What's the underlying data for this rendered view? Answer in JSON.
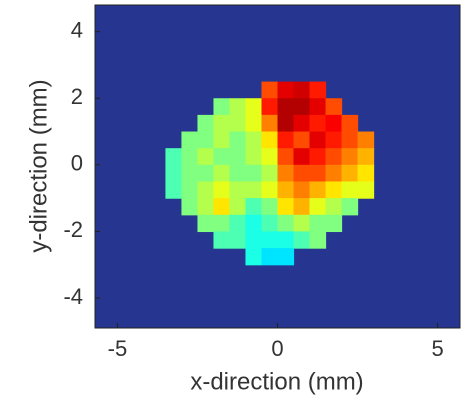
{
  "chart_data": {
    "type": "heatmap",
    "xlabel": "x-direction (mm)",
    "ylabel": "y-direction (mm)",
    "xlim": [
      -5.7,
      5.7
    ],
    "ylim": [
      -4.9,
      4.8
    ],
    "xticks": [
      -5,
      0,
      5
    ],
    "yticks": [
      4,
      2,
      0,
      -2,
      -4
    ],
    "colormap": "jet",
    "zlim": [
      0,
      1
    ],
    "background": "#26358f",
    "grid": false,
    "x": [
      -3.25,
      -2.75,
      -2.25,
      -1.75,
      -1.25,
      -0.75,
      -0.25,
      0.25,
      0.75,
      1.25,
      1.75,
      2.25,
      2.75
    ],
    "y": [
      2.25,
      1.75,
      1.25,
      0.75,
      0.25,
      -0.25,
      -0.75,
      -1.25,
      -1.75,
      -2.25,
      -2.75
    ],
    "z": [
      [
        null,
        null,
        null,
        null,
        null,
        null,
        0.8,
        0.9,
        0.92,
        0.85,
        null,
        null,
        null
      ],
      [
        null,
        null,
        null,
        0.5,
        0.55,
        0.6,
        0.85,
        0.95,
        0.95,
        0.9,
        0.8,
        null,
        null
      ],
      [
        null,
        null,
        0.5,
        0.55,
        0.55,
        0.6,
        0.75,
        0.95,
        0.9,
        0.85,
        0.88,
        0.8,
        null
      ],
      [
        null,
        0.5,
        0.5,
        0.55,
        0.5,
        0.55,
        0.65,
        0.85,
        0.8,
        0.9,
        0.85,
        0.8,
        0.75
      ],
      [
        0.45,
        0.5,
        0.55,
        0.5,
        0.5,
        0.55,
        0.6,
        0.8,
        0.9,
        0.85,
        0.8,
        0.75,
        0.7
      ],
      [
        0.45,
        0.5,
        0.5,
        0.55,
        0.5,
        0.5,
        0.55,
        0.75,
        0.8,
        0.8,
        0.75,
        0.7,
        0.65
      ],
      [
        0.45,
        0.5,
        0.55,
        0.6,
        0.55,
        0.55,
        0.6,
        0.7,
        0.75,
        0.7,
        0.65,
        0.6,
        0.6
      ],
      [
        null,
        0.5,
        0.55,
        0.65,
        0.55,
        0.45,
        0.5,
        0.65,
        0.7,
        0.6,
        0.55,
        0.5,
        null
      ],
      [
        null,
        null,
        0.5,
        0.5,
        0.45,
        0.4,
        0.45,
        0.5,
        0.55,
        0.5,
        0.5,
        null,
        null
      ],
      [
        null,
        null,
        null,
        0.45,
        0.45,
        0.4,
        0.4,
        0.4,
        0.45,
        0.5,
        null,
        null,
        null
      ],
      [
        null,
        null,
        null,
        null,
        null,
        0.4,
        0.35,
        0.35,
        null,
        null,
        null,
        null,
        null
      ]
    ]
  }
}
